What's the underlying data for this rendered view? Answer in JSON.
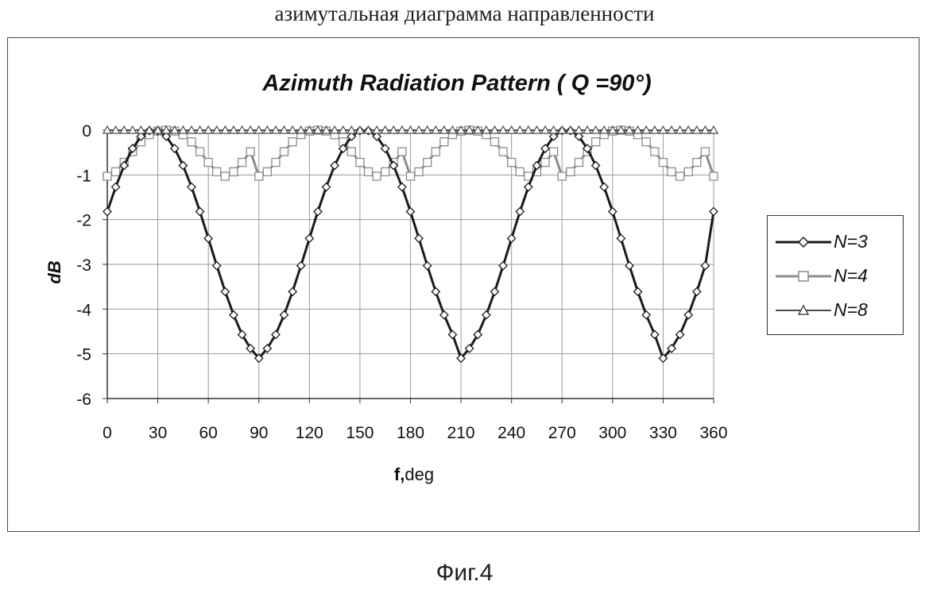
{
  "page": {
    "top_caption": "азимутальная диаграмма направленности",
    "fig_caption": "Фиг.4"
  },
  "chart_data": {
    "type": "line",
    "title": "Azimuth Radiation Pattern ( Q =90°)",
    "xlabel_bold": "f,",
    "xlabel_rest": "deg",
    "ylabel": "dB",
    "xlim": [
      0,
      360
    ],
    "ylim": [
      -6,
      0
    ],
    "grid": true,
    "legend_position": "right",
    "x_ticks": [
      "0",
      "30",
      "60",
      "90",
      "120",
      "150",
      "180",
      "210",
      "240",
      "270",
      "300",
      "330",
      "360"
    ],
    "y_ticks": [
      "0",
      "-1",
      "-2",
      "-3",
      "-4",
      "-5",
      "-6"
    ],
    "x": [
      0,
      5,
      10,
      15,
      20,
      25,
      30,
      35,
      40,
      45,
      50,
      55,
      60,
      65,
      70,
      75,
      80,
      85,
      90,
      95,
      100,
      105,
      110,
      115,
      120,
      125,
      130,
      135,
      140,
      145,
      150,
      155,
      160,
      165,
      170,
      175,
      180,
      185,
      190,
      195,
      200,
      205,
      210,
      215,
      220,
      225,
      230,
      235,
      240,
      245,
      250,
      255,
      260,
      265,
      270,
      275,
      280,
      285,
      290,
      295,
      300,
      305,
      310,
      315,
      320,
      325,
      330,
      335,
      340,
      345,
      350,
      355,
      360
    ],
    "series": [
      {
        "name": "N=3",
        "color": "#1a1a1a",
        "marker": "diamond",
        "stroke_width": 3,
        "values": [
          -1.82,
          -1.27,
          -0.79,
          -0.41,
          -0.14,
          -0.01,
          -0.01,
          -0.14,
          -0.41,
          -0.79,
          -1.27,
          -1.82,
          -2.42,
          -3.03,
          -3.61,
          -4.13,
          -4.57,
          -4.88,
          -5.1,
          -4.88,
          -4.57,
          -4.13,
          -3.61,
          -3.03,
          -2.42,
          -1.82,
          -1.27,
          -0.79,
          -0.41,
          -0.14,
          -0.01,
          -0.01,
          -0.14,
          -0.41,
          -0.79,
          -1.27,
          -1.82,
          -2.42,
          -3.03,
          -3.61,
          -4.13,
          -4.57,
          -5.1,
          -4.88,
          -4.57,
          -4.13,
          -3.61,
          -3.03,
          -2.42,
          -1.82,
          -1.27,
          -0.79,
          -0.41,
          -0.14,
          -0.01,
          -0.01,
          -0.14,
          -0.41,
          -0.79,
          -1.27,
          -1.82,
          -2.42,
          -3.03,
          -3.61,
          -4.13,
          -4.57,
          -5.1,
          -4.88,
          -4.57,
          -4.13,
          -3.61,
          -3.03,
          -1.82
        ]
      },
      {
        "name": "N=4",
        "color": "#8c8c8c",
        "marker": "square",
        "stroke_width": 3,
        "values": [
          -1.03,
          -0.93,
          -0.72,
          -0.48,
          -0.26,
          -0.1,
          -0.02,
          0,
          -0.02,
          -0.1,
          -0.26,
          -0.48,
          -0.72,
          -0.93,
          -1.03,
          -0.93,
          -0.72,
          -0.48,
          -1.03,
          -0.93,
          -0.72,
          -0.48,
          -0.26,
          -0.1,
          -0.02,
          0,
          -0.02,
          -0.1,
          -0.26,
          -0.48,
          -0.72,
          -0.93,
          -1.03,
          -0.93,
          -0.72,
          -0.48,
          -1.03,
          -0.93,
          -0.72,
          -0.48,
          -0.26,
          -0.1,
          -0.02,
          0,
          -0.02,
          -0.1,
          -0.26,
          -0.48,
          -0.72,
          -0.93,
          -1.03,
          -0.93,
          -0.72,
          -0.48,
          -1.03,
          -0.93,
          -0.72,
          -0.48,
          -0.26,
          -0.1,
          -0.02,
          0,
          -0.02,
          -0.1,
          -0.26,
          -0.48,
          -0.72,
          -0.93,
          -1.03,
          -0.93,
          -0.72,
          -0.48,
          -1.03
        ]
      },
      {
        "name": "N=8",
        "color": "#4a4a4a",
        "marker": "triangle",
        "stroke_width": 2,
        "values": [
          0,
          0,
          0,
          0,
          0,
          0,
          0,
          0,
          0,
          0,
          0,
          0,
          0,
          0,
          0,
          0,
          0,
          0,
          0,
          0,
          0,
          0,
          0,
          0,
          0,
          0,
          0,
          0,
          0,
          0,
          0,
          0,
          0,
          0,
          0,
          0,
          0,
          0,
          0,
          0,
          0,
          0,
          0,
          0,
          0,
          0,
          0,
          0,
          0,
          0,
          0,
          0,
          0,
          0,
          0,
          0,
          0,
          0,
          0,
          0,
          0,
          0,
          0,
          0,
          0,
          0,
          0,
          0,
          0,
          0,
          0,
          0,
          0
        ]
      }
    ]
  }
}
